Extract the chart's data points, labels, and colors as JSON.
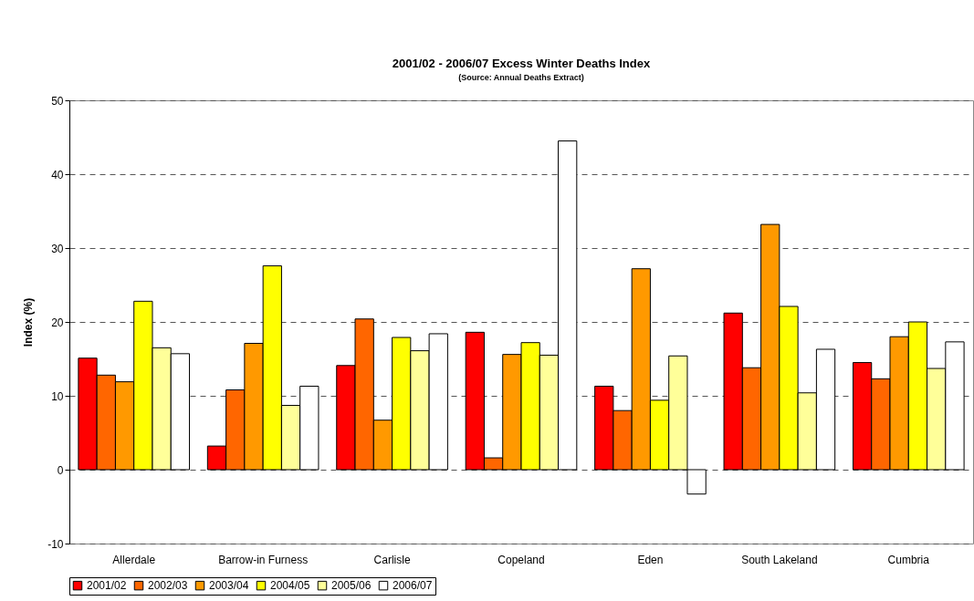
{
  "chart_data": {
    "type": "bar",
    "title": "2001/02 - 2006/07 Excess Winter Deaths Index",
    "subtitle": "(Source: Annual Deaths Extract)",
    "ylabel": "Index (%)",
    "categories": [
      "Allerdale",
      "Barrow-in Furness",
      "Carlisle",
      "Copeland",
      "Eden",
      "South Lakeland",
      "Cumbria"
    ],
    "series": [
      {
        "name": "2001/02",
        "color": "#ff0000",
        "values": [
          15.1,
          3.2,
          14.1,
          18.6,
          11.3,
          21.2,
          14.5
        ]
      },
      {
        "name": "2002/03",
        "color": "#ff6600",
        "values": [
          12.8,
          10.8,
          20.4,
          1.6,
          8.0,
          13.8,
          12.3
        ]
      },
      {
        "name": "2003/04",
        "color": "#ff9900",
        "values": [
          11.9,
          17.1,
          6.7,
          15.6,
          27.2,
          33.2,
          18.0
        ]
      },
      {
        "name": "2004/05",
        "color": "#ffff00",
        "values": [
          22.8,
          27.6,
          17.9,
          17.2,
          9.4,
          22.1,
          20.0
        ]
      },
      {
        "name": "2005/06",
        "color": "#ffff99",
        "values": [
          16.5,
          8.7,
          16.1,
          15.5,
          15.4,
          10.4,
          13.7
        ]
      },
      {
        "name": "2006/07",
        "color": "#ffffff",
        "values": [
          15.7,
          11.3,
          18.4,
          44.5,
          -3.3,
          16.3,
          17.3
        ]
      }
    ],
    "ylim": [
      -10,
      50
    ],
    "yticks": [
      -10,
      0,
      10,
      20,
      30,
      40,
      50
    ],
    "grid": "y",
    "legend": "bottom"
  }
}
